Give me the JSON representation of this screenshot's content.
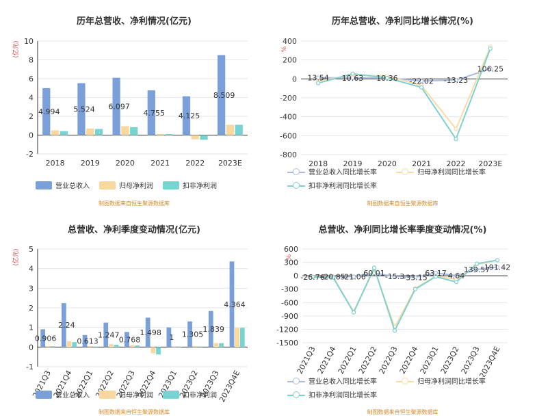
{
  "colors": {
    "revenue": "#7b9fd8",
    "parent_profit": "#f9d8a0",
    "net_profit_ex": "#79d3d1",
    "revenue_line": "#a9bde3",
    "parent_line": "#f7dcaa",
    "ex_line": "#7fd0cf"
  },
  "panels": [
    {
      "title": "历年总营收、净利情况(亿元)",
      "source": "制图数据来自恒生聚源数据库"
    },
    {
      "title": "历年总营收、净利同比增长情况(%)",
      "source": "制图数据来自恒生聚源数据库"
    },
    {
      "title": "总营收、净利季度变动情况(亿元)",
      "source": "制图数据来自恒生聚源数据库"
    },
    {
      "title": "总营收、净利同比增长率季度变动情况(%)",
      "source": "制图数据来自恒生聚源数据库"
    }
  ],
  "chart_data": [
    {
      "type": "bar",
      "title": "历年总营收、净利情况(亿元)",
      "ylabel": "(亿元)",
      "ylim": [
        -2,
        10
      ],
      "yticks": [
        -2,
        0,
        2,
        4,
        6,
        8,
        10
      ],
      "categories": [
        "2018",
        "2019",
        "2020",
        "2021",
        "2022",
        "2023E"
      ],
      "series": [
        {
          "name": "营业总收入",
          "values": [
            4.994,
            5.524,
            6.097,
            4.755,
            4.125,
            8.509
          ],
          "labels": [
            "4.994",
            "5.524",
            "6.097",
            "4.755",
            "4.125",
            "8.509"
          ]
        },
        {
          "name": "归母净利润",
          "values": [
            0.5,
            0.7,
            0.95,
            0.12,
            -0.45,
            1.1
          ]
        },
        {
          "name": "扣非净利润",
          "values": [
            0.42,
            0.65,
            0.85,
            0.1,
            -0.5,
            1.1
          ]
        }
      ],
      "legend": "bottom",
      "grid": true
    },
    {
      "type": "line",
      "title": "历年总营收、净利同比增长情况(%)",
      "ylabel": "%",
      "ylim": [
        -800,
        400
      ],
      "yticks": [
        -800,
        -600,
        -400,
        -200,
        0,
        200,
        400
      ],
      "categories": [
        "2018",
        "2019",
        "2020",
        "2021",
        "2022",
        "2023E"
      ],
      "series": [
        {
          "name": "营业总收入同比增长率",
          "values": [
            13.54,
            10.63,
            10.36,
            -22.02,
            -13.23,
            106.25
          ],
          "labels": [
            "13.54",
            "10.63",
            "10.36",
            "-22.02",
            "-13.23",
            "106.25"
          ]
        },
        {
          "name": "归母净利润同比增长率",
          "values": [
            -20,
            40,
            30,
            -70,
            -530,
            340
          ]
        },
        {
          "name": "扣非净利润同比增长率",
          "values": [
            -45,
            55,
            10,
            -90,
            -635,
            320
          ]
        }
      ],
      "legend": "bottom",
      "grid": true
    },
    {
      "type": "bar",
      "title": "总营收、净利季度变动情况(亿元)",
      "ylabel": "(亿元)",
      "ylim": [
        -1,
        5
      ],
      "yticks": [
        -1,
        0,
        1,
        2,
        3,
        4,
        5
      ],
      "categories": [
        "2021Q3",
        "2021Q4",
        "2022Q1",
        "2022Q2",
        "2022Q3",
        "2022Q4",
        "2023Q1",
        "2023Q2",
        "2023Q3",
        "2023Q4E"
      ],
      "series": [
        {
          "name": "营业总收入",
          "values": [
            0.906,
            2.24,
            0.613,
            1.247,
            0.768,
            1.498,
            1.0,
            1.305,
            1.839,
            4.364
          ],
          "labels": [
            "0.906",
            "2.24",
            "0.613",
            "1.247",
            "0.768",
            "1.498",
            "1",
            "1.305",
            "1.839",
            "4.364"
          ]
        },
        {
          "name": "归母净利润",
          "values": [
            0.05,
            0.3,
            0.05,
            0.15,
            0.1,
            -0.32,
            0.0,
            0.05,
            0.2,
            0.98
          ]
        },
        {
          "name": "扣非净利润",
          "values": [
            0.04,
            0.25,
            0.03,
            0.12,
            0.08,
            -0.38,
            -0.02,
            0.03,
            0.2,
            0.98
          ]
        }
      ],
      "legend": "bottom",
      "grid": true
    },
    {
      "type": "line",
      "title": "总营收、净利同比增长率季度变动情况(%)",
      "ylabel": "%",
      "ylim": [
        -1500,
        600
      ],
      "yticks": [
        -1500,
        -1200,
        -900,
        -600,
        -300,
        0,
        300,
        600
      ],
      "categories": [
        "2021Q3",
        "2021Q4",
        "2022Q1",
        "2022Q2",
        "2022Q3",
        "2022Q4",
        "2023Q1",
        "2023Q2",
        "2023Q3",
        "2023Q4E"
      ],
      "series": [
        {
          "name": "营业总收入同比增长率",
          "values": [
            -26.76,
            -20.85,
            -21.06,
            60.01,
            -15.3,
            -33.15,
            63.17,
            4.64,
            139.57,
            191.42
          ],
          "labels": [
            "-26.76",
            "-20.85",
            "-21.06",
            "60.01",
            "-15.3",
            "-33.15",
            "63.17",
            "4.64",
            "139.57",
            "191.42"
          ]
        },
        {
          "name": "归母净利润同比增长率",
          "values": [
            -20,
            -30,
            -800,
            150,
            -1150,
            -280,
            -10,
            -80,
            250,
            350
          ]
        },
        {
          "name": "扣非净利润同比增长率",
          "values": [
            -30,
            -40,
            -820,
            180,
            -1230,
            -300,
            -20,
            -140,
            270,
            350
          ]
        }
      ],
      "legend": "bottom",
      "grid": true
    }
  ]
}
